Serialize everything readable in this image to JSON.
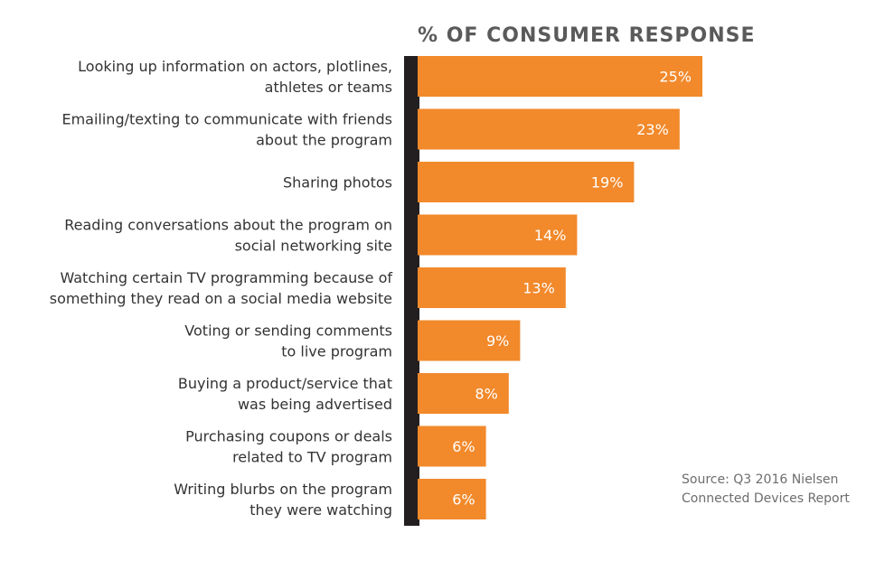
{
  "chart_data": {
    "type": "bar",
    "orientation": "horizontal",
    "title": "% OF CONSUMER RESPONSE",
    "categories": [
      [
        "Looking up information on actors, plotlines,",
        "athletes or teams"
      ],
      [
        "Emailing/texting to communicate with friends",
        "about the program"
      ],
      [
        "Sharing photos"
      ],
      [
        "Reading conversations about the program on",
        "social networking site"
      ],
      [
        "Watching certain TV programming because of",
        "something they read on a social media website"
      ],
      [
        "Voting or sending comments",
        "to live program"
      ],
      [
        "Buying a product/service that",
        "was being advertised"
      ],
      [
        "Purchasing coupons or deals",
        "related to TV program"
      ],
      [
        "Writing blurbs on the program",
        "they were watching"
      ]
    ],
    "values": [
      25,
      23,
      19,
      14,
      13,
      9,
      8,
      6,
      6
    ],
    "value_labels": [
      "25%",
      "23%",
      "19%",
      "14%",
      "13%",
      "9%",
      "8%",
      "6%",
      "6%"
    ],
    "bar_color": "#f2892b",
    "axis_color": "#231f20",
    "grid": false,
    "legend": "none"
  },
  "source": {
    "line1": "Source: Q3 2016 Nielsen",
    "line2": "Connected Devices Report"
  }
}
